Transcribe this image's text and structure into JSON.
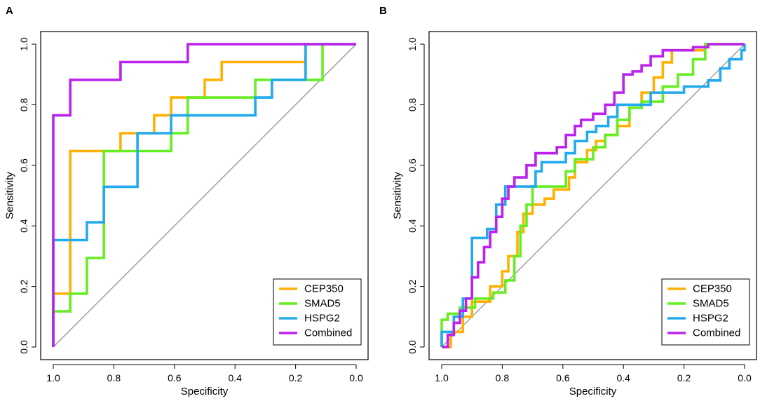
{
  "colors": {
    "CEP350": "#FFB000",
    "SMAD5": "#66EE22",
    "HSPG2": "#22AAEE",
    "Combined": "#BB22EE",
    "diagonal": "#909090",
    "frame": "#000000"
  },
  "chart_data": [
    {
      "panel_label": "A",
      "type": "line",
      "title": "",
      "xlabel": "Specificity",
      "ylabel": "Sensitivity",
      "xlim": [
        1.0,
        0.0
      ],
      "ylim": [
        0.0,
        1.0
      ],
      "x_ticks": [
        "1.0",
        "0.8",
        "0.6",
        "0.4",
        "0.2",
        "0.0"
      ],
      "y_ticks": [
        "0.0",
        "0.2",
        "0.4",
        "0.6",
        "0.8",
        "1.0"
      ],
      "reference_line": [
        [
          1.0,
          0.0
        ],
        [
          0.0,
          1.0
        ]
      ],
      "legend_position": "bottom-right",
      "series": [
        {
          "name": "CEP350",
          "color": "#FFB000",
          "points": [
            [
              1.0,
              0.0
            ],
            [
              1.0,
              0.176
            ],
            [
              0.944,
              0.176
            ],
            [
              0.944,
              0.647
            ],
            [
              0.778,
              0.647
            ],
            [
              0.778,
              0.706
            ],
            [
              0.667,
              0.706
            ],
            [
              0.667,
              0.765
            ],
            [
              0.611,
              0.765
            ],
            [
              0.611,
              0.824
            ],
            [
              0.5,
              0.824
            ],
            [
              0.5,
              0.882
            ],
            [
              0.444,
              0.882
            ],
            [
              0.444,
              0.941
            ],
            [
              0.167,
              0.941
            ],
            [
              0.167,
              1.0
            ],
            [
              0.0,
              1.0
            ]
          ]
        },
        {
          "name": "SMAD5",
          "color": "#66EE22",
          "points": [
            [
              1.0,
              0.0
            ],
            [
              1.0,
              0.118
            ],
            [
              0.944,
              0.118
            ],
            [
              0.944,
              0.176
            ],
            [
              0.889,
              0.176
            ],
            [
              0.889,
              0.294
            ],
            [
              0.833,
              0.294
            ],
            [
              0.833,
              0.647
            ],
            [
              0.611,
              0.647
            ],
            [
              0.611,
              0.706
            ],
            [
              0.556,
              0.706
            ],
            [
              0.556,
              0.824
            ],
            [
              0.333,
              0.824
            ],
            [
              0.333,
              0.882
            ],
            [
              0.111,
              0.882
            ],
            [
              0.111,
              1.0
            ],
            [
              0.0,
              1.0
            ]
          ]
        },
        {
          "name": "HSPG2",
          "color": "#22AAEE",
          "points": [
            [
              1.0,
              0.0
            ],
            [
              1.0,
              0.353
            ],
            [
              0.889,
              0.353
            ],
            [
              0.889,
              0.412
            ],
            [
              0.833,
              0.412
            ],
            [
              0.833,
              0.529
            ],
            [
              0.722,
              0.529
            ],
            [
              0.722,
              0.706
            ],
            [
              0.611,
              0.706
            ],
            [
              0.611,
              0.765
            ],
            [
              0.333,
              0.765
            ],
            [
              0.333,
              0.824
            ],
            [
              0.278,
              0.824
            ],
            [
              0.278,
              0.882
            ],
            [
              0.167,
              0.882
            ],
            [
              0.167,
              1.0
            ],
            [
              0.0,
              1.0
            ]
          ]
        },
        {
          "name": "Combined",
          "color": "#BB22EE",
          "points": [
            [
              1.0,
              0.0
            ],
            [
              1.0,
              0.765
            ],
            [
              0.944,
              0.765
            ],
            [
              0.944,
              0.882
            ],
            [
              0.778,
              0.882
            ],
            [
              0.778,
              0.941
            ],
            [
              0.556,
              0.941
            ],
            [
              0.556,
              1.0
            ],
            [
              0.0,
              1.0
            ]
          ]
        }
      ]
    },
    {
      "panel_label": "B",
      "type": "line",
      "title": "",
      "xlabel": "Specificity",
      "ylabel": "Sensitivity",
      "xlim": [
        1.0,
        0.0
      ],
      "ylim": [
        0.0,
        1.0
      ],
      "x_ticks": [
        "1.0",
        "0.8",
        "0.6",
        "0.4",
        "0.2",
        "0.0"
      ],
      "y_ticks": [
        "0.0",
        "0.2",
        "0.4",
        "0.6",
        "0.8",
        "1.0"
      ],
      "reference_line": [
        [
          1.0,
          0.0
        ],
        [
          0.0,
          1.0
        ]
      ],
      "legend_position": "bottom-right",
      "series": [
        {
          "name": "CEP350",
          "color": "#FFB000",
          "points": [
            [
              1.0,
              0.0
            ],
            [
              0.97,
              0.0
            ],
            [
              0.97,
              0.05
            ],
            [
              0.93,
              0.05
            ],
            [
              0.93,
              0.1
            ],
            [
              0.9,
              0.1
            ],
            [
              0.9,
              0.15
            ],
            [
              0.84,
              0.15
            ],
            [
              0.84,
              0.2
            ],
            [
              0.8,
              0.2
            ],
            [
              0.8,
              0.25
            ],
            [
              0.78,
              0.25
            ],
            [
              0.78,
              0.3
            ],
            [
              0.75,
              0.3
            ],
            [
              0.75,
              0.38
            ],
            [
              0.73,
              0.38
            ],
            [
              0.73,
              0.44
            ],
            [
              0.7,
              0.44
            ],
            [
              0.7,
              0.47
            ],
            [
              0.66,
              0.47
            ],
            [
              0.66,
              0.49
            ],
            [
              0.63,
              0.49
            ],
            [
              0.63,
              0.52
            ],
            [
              0.58,
              0.52
            ],
            [
              0.58,
              0.56
            ],
            [
              0.56,
              0.56
            ],
            [
              0.56,
              0.61
            ],
            [
              0.52,
              0.61
            ],
            [
              0.52,
              0.65
            ],
            [
              0.49,
              0.65
            ],
            [
              0.49,
              0.68
            ],
            [
              0.46,
              0.68
            ],
            [
              0.46,
              0.7
            ],
            [
              0.42,
              0.7
            ],
            [
              0.42,
              0.73
            ],
            [
              0.38,
              0.73
            ],
            [
              0.38,
              0.79
            ],
            [
              0.34,
              0.79
            ],
            [
              0.34,
              0.84
            ],
            [
              0.3,
              0.84
            ],
            [
              0.3,
              0.89
            ],
            [
              0.27,
              0.89
            ],
            [
              0.27,
              0.94
            ],
            [
              0.24,
              0.94
            ],
            [
              0.24,
              0.98
            ],
            [
              0.13,
              0.98
            ],
            [
              0.13,
              1.0
            ],
            [
              0.0,
              1.0
            ]
          ]
        },
        {
          "name": "SMAD5",
          "color": "#66EE22",
          "points": [
            [
              1.0,
              0.0
            ],
            [
              1.0,
              0.09
            ],
            [
              0.98,
              0.09
            ],
            [
              0.98,
              0.11
            ],
            [
              0.94,
              0.11
            ],
            [
              0.94,
              0.13
            ],
            [
              0.89,
              0.13
            ],
            [
              0.89,
              0.16
            ],
            [
              0.83,
              0.16
            ],
            [
              0.83,
              0.18
            ],
            [
              0.79,
              0.18
            ],
            [
              0.79,
              0.22
            ],
            [
              0.76,
              0.22
            ],
            [
              0.76,
              0.3
            ],
            [
              0.74,
              0.3
            ],
            [
              0.74,
              0.4
            ],
            [
              0.72,
              0.4
            ],
            [
              0.72,
              0.47
            ],
            [
              0.7,
              0.47
            ],
            [
              0.7,
              0.53
            ],
            [
              0.59,
              0.53
            ],
            [
              0.59,
              0.58
            ],
            [
              0.56,
              0.58
            ],
            [
              0.56,
              0.62
            ],
            [
              0.5,
              0.62
            ],
            [
              0.5,
              0.66
            ],
            [
              0.46,
              0.66
            ],
            [
              0.46,
              0.7
            ],
            [
              0.42,
              0.7
            ],
            [
              0.42,
              0.75
            ],
            [
              0.38,
              0.75
            ],
            [
              0.38,
              0.79
            ],
            [
              0.34,
              0.79
            ],
            [
              0.34,
              0.81
            ],
            [
              0.27,
              0.81
            ],
            [
              0.27,
              0.86
            ],
            [
              0.22,
              0.86
            ],
            [
              0.22,
              0.9
            ],
            [
              0.17,
              0.9
            ],
            [
              0.17,
              0.95
            ],
            [
              0.13,
              0.95
            ],
            [
              0.13,
              1.0
            ],
            [
              0.0,
              1.0
            ]
          ]
        },
        {
          "name": "HSPG2",
          "color": "#22AAEE",
          "points": [
            [
              1.0,
              0.0
            ],
            [
              1.0,
              0.05
            ],
            [
              0.96,
              0.05
            ],
            [
              0.96,
              0.1
            ],
            [
              0.93,
              0.1
            ],
            [
              0.93,
              0.16
            ],
            [
              0.9,
              0.16
            ],
            [
              0.9,
              0.36
            ],
            [
              0.85,
              0.36
            ],
            [
              0.85,
              0.39
            ],
            [
              0.82,
              0.39
            ],
            [
              0.82,
              0.47
            ],
            [
              0.79,
              0.47
            ],
            [
              0.79,
              0.53
            ],
            [
              0.69,
              0.53
            ],
            [
              0.69,
              0.58
            ],
            [
              0.67,
              0.58
            ],
            [
              0.67,
              0.61
            ],
            [
              0.59,
              0.61
            ],
            [
              0.59,
              0.64
            ],
            [
              0.56,
              0.64
            ],
            [
              0.56,
              0.68
            ],
            [
              0.52,
              0.68
            ],
            [
              0.52,
              0.71
            ],
            [
              0.49,
              0.71
            ],
            [
              0.49,
              0.73
            ],
            [
              0.45,
              0.73
            ],
            [
              0.45,
              0.76
            ],
            [
              0.42,
              0.76
            ],
            [
              0.42,
              0.8
            ],
            [
              0.31,
              0.8
            ],
            [
              0.31,
              0.84
            ],
            [
              0.2,
              0.84
            ],
            [
              0.2,
              0.86
            ],
            [
              0.12,
              0.86
            ],
            [
              0.12,
              0.88
            ],
            [
              0.08,
              0.88
            ],
            [
              0.08,
              0.92
            ],
            [
              0.05,
              0.92
            ],
            [
              0.05,
              0.95
            ],
            [
              0.01,
              0.95
            ],
            [
              0.01,
              0.98
            ],
            [
              0.0,
              0.98
            ],
            [
              0.0,
              1.0
            ]
          ]
        },
        {
          "name": "Combined",
          "color": "#BB22EE",
          "points": [
            [
              1.0,
              0.0
            ],
            [
              0.98,
              0.0
            ],
            [
              0.98,
              0.04
            ],
            [
              0.96,
              0.04
            ],
            [
              0.96,
              0.08
            ],
            [
              0.94,
              0.08
            ],
            [
              0.94,
              0.12
            ],
            [
              0.92,
              0.12
            ],
            [
              0.92,
              0.16
            ],
            [
              0.9,
              0.16
            ],
            [
              0.9,
              0.23
            ],
            [
              0.88,
              0.23
            ],
            [
              0.88,
              0.28
            ],
            [
              0.86,
              0.28
            ],
            [
              0.86,
              0.33
            ],
            [
              0.84,
              0.33
            ],
            [
              0.84,
              0.38
            ],
            [
              0.82,
              0.38
            ],
            [
              0.82,
              0.43
            ],
            [
              0.8,
              0.43
            ],
            [
              0.8,
              0.49
            ],
            [
              0.78,
              0.49
            ],
            [
              0.78,
              0.53
            ],
            [
              0.76,
              0.53
            ],
            [
              0.76,
              0.56
            ],
            [
              0.72,
              0.56
            ],
            [
              0.72,
              0.6
            ],
            [
              0.69,
              0.6
            ],
            [
              0.69,
              0.64
            ],
            [
              0.62,
              0.64
            ],
            [
              0.62,
              0.66
            ],
            [
              0.59,
              0.66
            ],
            [
              0.59,
              0.7
            ],
            [
              0.56,
              0.7
            ],
            [
              0.56,
              0.73
            ],
            [
              0.54,
              0.73
            ],
            [
              0.54,
              0.75
            ],
            [
              0.5,
              0.75
            ],
            [
              0.5,
              0.77
            ],
            [
              0.46,
              0.77
            ],
            [
              0.46,
              0.8
            ],
            [
              0.43,
              0.8
            ],
            [
              0.43,
              0.84
            ],
            [
              0.4,
              0.84
            ],
            [
              0.4,
              0.9
            ],
            [
              0.37,
              0.9
            ],
            [
              0.37,
              0.91
            ],
            [
              0.34,
              0.91
            ],
            [
              0.34,
              0.93
            ],
            [
              0.31,
              0.93
            ],
            [
              0.31,
              0.96
            ],
            [
              0.27,
              0.96
            ],
            [
              0.27,
              0.98
            ],
            [
              0.17,
              0.98
            ],
            [
              0.17,
              0.99
            ],
            [
              0.12,
              0.99
            ],
            [
              0.12,
              1.0
            ],
            [
              0.0,
              1.0
            ]
          ]
        }
      ]
    }
  ]
}
